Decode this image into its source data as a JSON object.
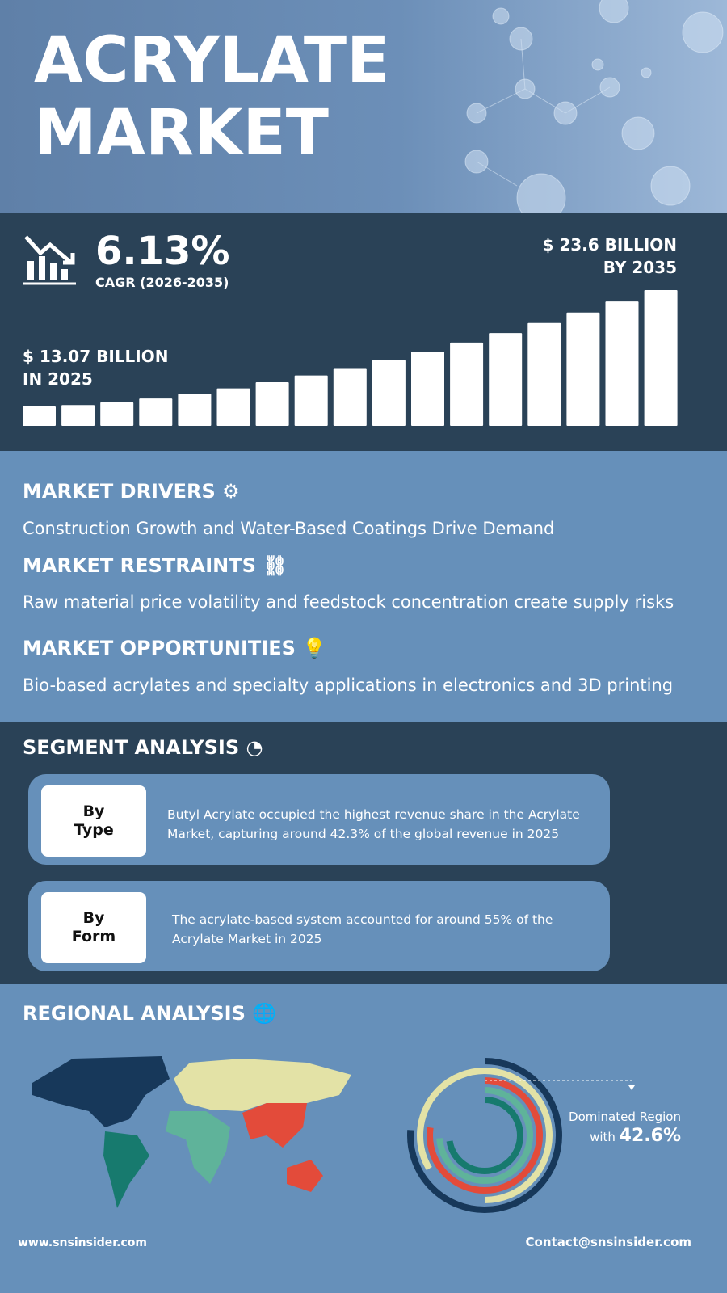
{
  "header": {
    "title_lines": [
      "ACRYLATE",
      "MARKET"
    ]
  },
  "growth": {
    "cagr": "6.13%",
    "cagr_label": "CAGR (2026-2035)",
    "start": [
      "$ 13.07 BILLION",
      "IN 2025"
    ],
    "end": [
      "$ 23.6 BILLION",
      "BY 2035"
    ]
  },
  "insights": [
    {
      "heading": "MARKET DRIVERS",
      "text": "Construction Growth and Water-Based Coatings Drive Demand"
    },
    {
      "heading": "MARKET RESTRAINTS",
      "text": "Raw material price volatility and feedstock concentration create supply risks"
    },
    {
      "heading": "MARKET OPPORTUNITIES",
      "text": "Bio-based acrylates and specialty applications in electronics and 3D printing"
    }
  ],
  "segment": {
    "heading": "SEGMENT ANALYSIS",
    "items": [
      {
        "label": [
          "By",
          "Type"
        ],
        "text": "Butyl Acrylate occupied the highest revenue share in the Acrylate Market, capturing around 42.3% of the global revenue in 2025"
      },
      {
        "label": [
          "By",
          "Form"
        ],
        "text": "The acrylate-based system accounted for around 55% of the Acrylate Market in 2025"
      }
    ]
  },
  "regional": {
    "heading": "REGIONAL ANALYSIS",
    "note": "Dominated Region",
    "with": "with",
    "share": "42.6%"
  },
  "footer": {
    "website": "www.snsinsider.com",
    "contact": "Contact@snsinsider.com"
  }
}
